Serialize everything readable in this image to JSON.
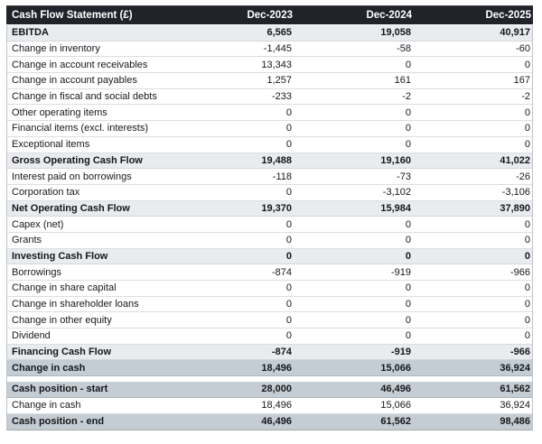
{
  "table": {
    "title": "Cash Flow Statement (£)",
    "columns": [
      "Dec-2023",
      "Dec-2024",
      "Dec-2025"
    ],
    "rows": [
      {
        "label": "EBITDA",
        "values": [
          "6,565",
          "19,058",
          "40,917"
        ],
        "style": "subtotal"
      },
      {
        "label": "Change in inventory",
        "values": [
          "-1,445",
          "-58",
          "-60"
        ],
        "style": "normal"
      },
      {
        "label": "Change in account receivables",
        "values": [
          "13,343",
          "0",
          "0"
        ],
        "style": "normal"
      },
      {
        "label": "Change in account payables",
        "values": [
          "1,257",
          "161",
          "167"
        ],
        "style": "normal"
      },
      {
        "label": "Change in fiscal and social debts",
        "values": [
          "-233",
          "-2",
          "-2"
        ],
        "style": "normal"
      },
      {
        "label": "Other operating items",
        "values": [
          "0",
          "0",
          "0"
        ],
        "style": "normal"
      },
      {
        "label": "Financial items (excl. interests)",
        "values": [
          "0",
          "0",
          "0"
        ],
        "style": "normal"
      },
      {
        "label": "Exceptional items",
        "values": [
          "0",
          "0",
          "0"
        ],
        "style": "normal"
      },
      {
        "label": "Gross Operating Cash Flow",
        "values": [
          "19,488",
          "19,160",
          "41,022"
        ],
        "style": "subtotal"
      },
      {
        "label": "Interest paid on borrowings",
        "values": [
          "-118",
          "-73",
          "-26"
        ],
        "style": "normal"
      },
      {
        "label": "Corporation tax",
        "values": [
          "0",
          "-3,102",
          "-3,106"
        ],
        "style": "normal"
      },
      {
        "label": "Net Operating Cash Flow",
        "values": [
          "19,370",
          "15,984",
          "37,890"
        ],
        "style": "subtotal"
      },
      {
        "label": "Capex (net)",
        "values": [
          "0",
          "0",
          "0"
        ],
        "style": "normal"
      },
      {
        "label": "Grants",
        "values": [
          "0",
          "0",
          "0"
        ],
        "style": "normal"
      },
      {
        "label": "Investing Cash Flow",
        "values": [
          "0",
          "0",
          "0"
        ],
        "style": "subtotal"
      },
      {
        "label": "Borrowings",
        "values": [
          "-874",
          "-919",
          "-966"
        ],
        "style": "normal"
      },
      {
        "label": "Change in share capital",
        "values": [
          "0",
          "0",
          "0"
        ],
        "style": "normal"
      },
      {
        "label": "Change in shareholder loans",
        "values": [
          "0",
          "0",
          "0"
        ],
        "style": "normal"
      },
      {
        "label": "Change in other equity",
        "values": [
          "0",
          "0",
          "0"
        ],
        "style": "normal"
      },
      {
        "label": "Dividend",
        "values": [
          "0",
          "0",
          "0"
        ],
        "style": "normal"
      },
      {
        "label": "Financing Cash Flow",
        "values": [
          "-874",
          "-919",
          "-966"
        ],
        "style": "subtotal"
      },
      {
        "label": "Change in cash",
        "values": [
          "18,496",
          "15,066",
          "36,924"
        ],
        "style": "highlight"
      },
      {
        "label": "",
        "values": [
          "",
          "",
          ""
        ],
        "style": "spacer"
      },
      {
        "label": "Cash position - start",
        "values": [
          "28,000",
          "46,496",
          "61,562"
        ],
        "style": "highlight"
      },
      {
        "label": "Change in cash",
        "values": [
          "18,496",
          "15,066",
          "36,924"
        ],
        "style": "normal"
      },
      {
        "label": "Cash position - end",
        "values": [
          "46,496",
          "61,562",
          "98,486"
        ],
        "style": "highlight"
      }
    ],
    "colors": {
      "header_bg": "#20242a",
      "header_text": "#ffffff",
      "subtotal_row_bg": "#e9ebef",
      "highlight_row_bg": "#c5cdd4",
      "row_border": "#dadde2",
      "table_border": "#bcc3ca",
      "body_text": "#14171a"
    }
  }
}
